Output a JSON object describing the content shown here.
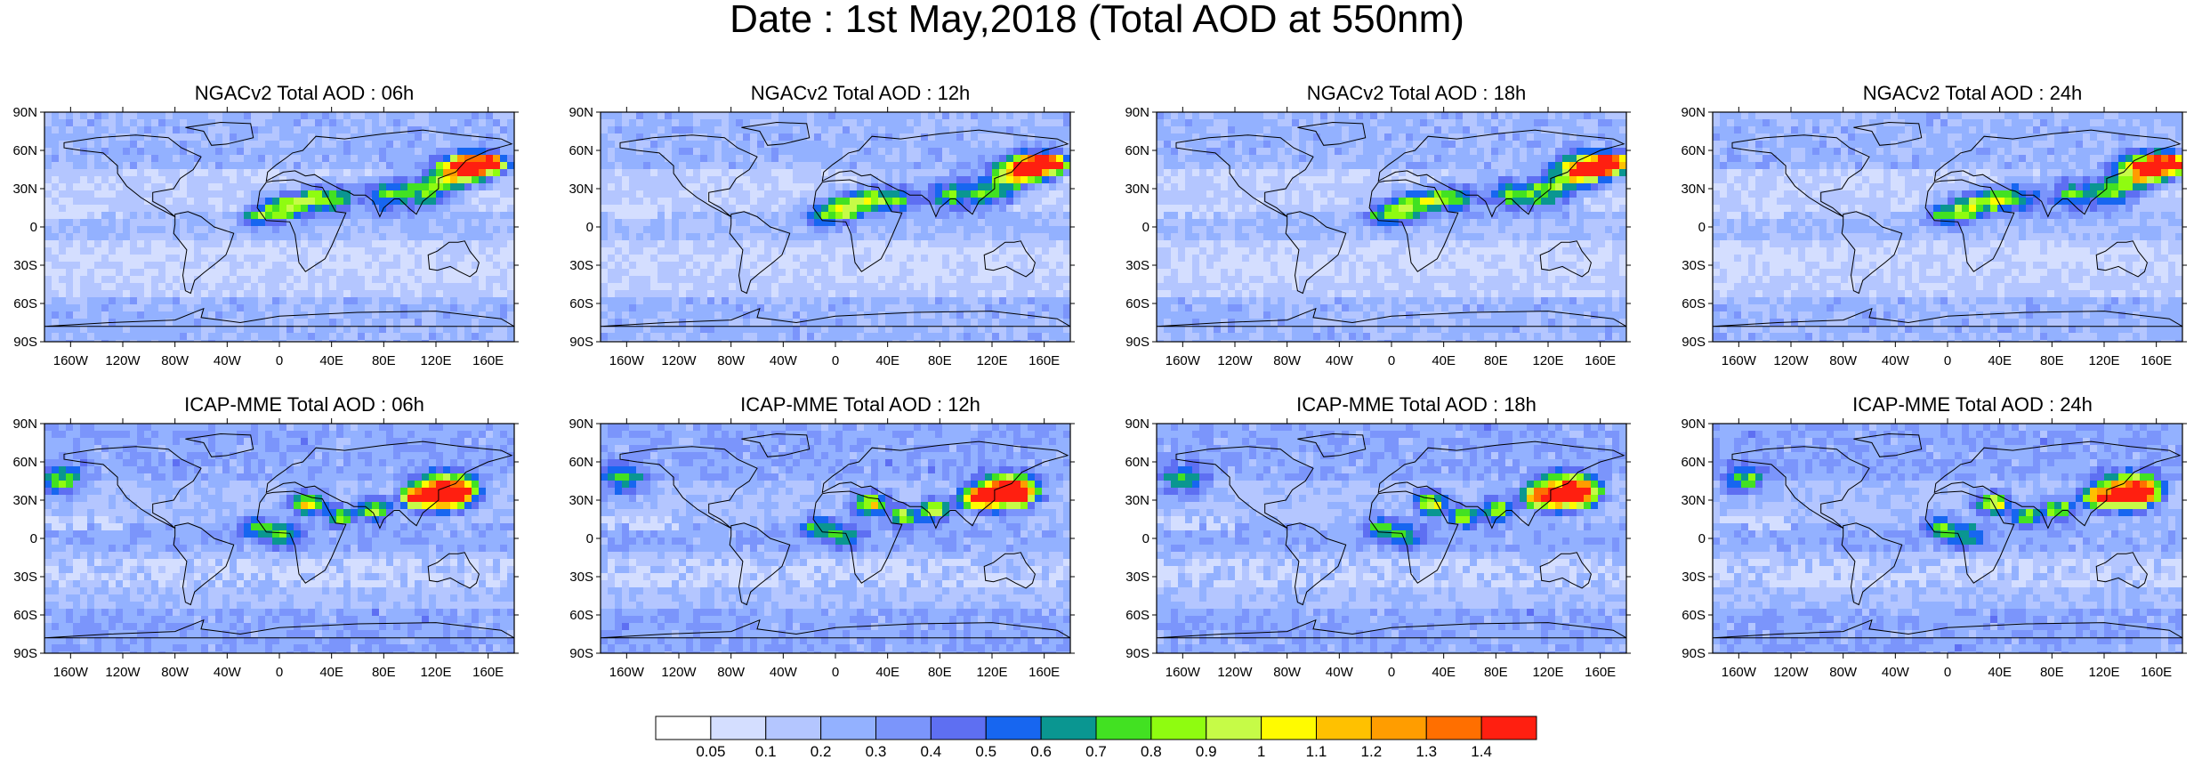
{
  "title": "Date : 1st May,2018 (Total AOD at 550nm)",
  "panels": [
    {
      "title": "NGACv2 Total AOD : 06h",
      "model": "NGACv2",
      "hour": "06h"
    },
    {
      "title": "NGACv2 Total AOD : 12h",
      "model": "NGACv2",
      "hour": "12h"
    },
    {
      "title": "NGACv2 Total AOD : 18h",
      "model": "NGACv2",
      "hour": "18h"
    },
    {
      "title": "NGACv2 Total AOD : 24h",
      "model": "NGACv2",
      "hour": "24h"
    },
    {
      "title": "ICAP-MME Total AOD : 06h",
      "model": "ICAP-MME",
      "hour": "06h"
    },
    {
      "title": "ICAP-MME Total AOD : 12h",
      "model": "ICAP-MME",
      "hour": "12h"
    },
    {
      "title": "ICAP-MME Total AOD : 18h",
      "model": "ICAP-MME",
      "hour": "18h"
    },
    {
      "title": "ICAP-MME Total AOD : 24h",
      "model": "ICAP-MME",
      "hour": "24h"
    }
  ],
  "axes": {
    "lat_labels": [
      "90N",
      "60N",
      "30N",
      "0",
      "30S",
      "60S",
      "90S"
    ],
    "lon_labels": [
      "160W",
      "120W",
      "80W",
      "40W",
      "0",
      "40E",
      "80E",
      "120E",
      "160E"
    ]
  },
  "colorbar": {
    "labels": [
      "0.05",
      "0.1",
      "0.2",
      "0.3",
      "0.4",
      "0.5",
      "0.6",
      "0.7",
      "0.8",
      "0.9",
      "1",
      "1.1",
      "1.2",
      "1.3",
      "1.4"
    ],
    "colors": [
      "#ffffff",
      "#d4deff",
      "#b4c6ff",
      "#93b1ff",
      "#7b95fb",
      "#5e6ff2",
      "#1766f0",
      "#0a9691",
      "#42e122",
      "#8ffc10",
      "#c6fb47",
      "#fffb00",
      "#ffc100",
      "#ff9d00",
      "#ff6f00",
      "#ff1f10"
    ]
  }
}
